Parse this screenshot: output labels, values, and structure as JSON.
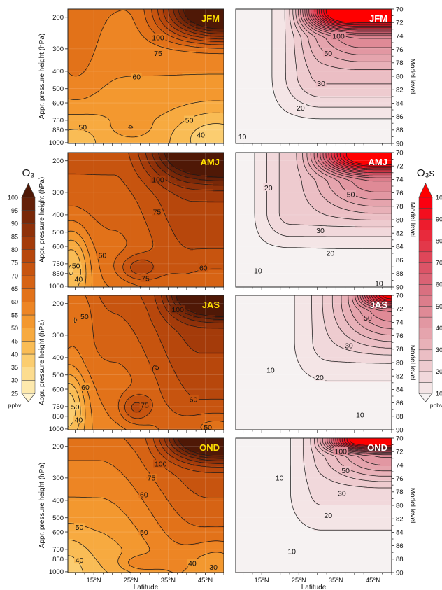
{
  "chart_data": {
    "type": "heatmap",
    "xlabel": "Latitude",
    "x_ticks": [
      "15°N",
      "25°N",
      "35°N",
      "45°N"
    ],
    "x_tick_values": [
      15,
      25,
      35,
      45
    ],
    "xlim": [
      8,
      50
    ],
    "ylabel_left": "Appr. pressure height (hPa)",
    "ylabel_right": "Model level",
    "pressure_ticks": [
      "200",
      "300",
      "400",
      "500",
      "600",
      "750",
      "850",
      "1000"
    ],
    "pressure_tick_values": [
      200,
      300,
      400,
      500,
      600,
      750,
      850,
      1000
    ],
    "pressure_lim": [
      180,
      1010
    ],
    "level_ticks": [
      "70",
      "72",
      "74",
      "76",
      "78",
      "80",
      "82",
      "84",
      "86",
      "88",
      "90"
    ],
    "level_tick_values": [
      70,
      72,
      74,
      76,
      78,
      80,
      82,
      84,
      86,
      88,
      90
    ],
    "seasons": [
      "JFM",
      "AMJ",
      "JAS",
      "OND"
    ],
    "o3": {
      "colorbar_title": "O₃",
      "unit": "ppbv",
      "levels": [
        25,
        30,
        35,
        40,
        45,
        50,
        55,
        60,
        65,
        70,
        75,
        80,
        85,
        90,
        95,
        100
      ],
      "labels": [
        "25",
        "30",
        "35",
        "40",
        "45",
        "50",
        "55",
        "60",
        "65",
        "70",
        "75",
        "80",
        "85",
        "90",
        "95",
        "100"
      ],
      "colors": [
        "#fff4cf",
        "#fde9ad",
        "#fcdc8f",
        "#fbcd70",
        "#f9bc55",
        "#f7aa40",
        "#f3982f",
        "#ed8524",
        "#e27219",
        "#d66314",
        "#c7540f",
        "#b7470c",
        "#a43b0a",
        "#8f3109",
        "#792808",
        "#652008",
        "#4f1806"
      ],
      "panels": [
        {
          "season": "JFM",
          "contour_labels": [
            {
              "text": "100",
              "lat": 32.3,
              "p": 260
            },
            {
              "text": "75",
              "lat": 32.3,
              "p": 318
            },
            {
              "text": "60",
              "lat": 26.5,
              "p": 430
            },
            {
              "text": "50",
              "lat": 12.0,
              "p": 818
            },
            {
              "text": "50",
              "lat": 40.7,
              "p": 748
            },
            {
              "text": "40",
              "lat": 43.8,
              "p": 905
            }
          ]
        },
        {
          "season": "AMJ",
          "contour_labels": [
            {
              "text": "100",
              "lat": 32.3,
              "p": 255
            },
            {
              "text": "75",
              "lat": 32.0,
              "p": 385
            },
            {
              "text": "60",
              "lat": 17.3,
              "p": 672
            },
            {
              "text": "50",
              "lat": 10.2,
              "p": 768
            },
            {
              "text": "40",
              "lat": 10.9,
              "p": 912
            },
            {
              "text": "75",
              "lat": 28.9,
              "p": 905
            },
            {
              "text": "60",
              "lat": 44.5,
              "p": 790
            }
          ]
        },
        {
          "season": "JAS",
          "contour_labels": [
            {
              "text": "50",
              "lat": 12.5,
              "p": 236
            },
            {
              "text": "100",
              "lat": 37.6,
              "p": 216
            },
            {
              "text": "75",
              "lat": 31.5,
              "p": 450
            },
            {
              "text": "60",
              "lat": 12.7,
              "p": 585
            },
            {
              "text": "50",
              "lat": 10.0,
              "p": 752
            },
            {
              "text": "40",
              "lat": 10.9,
              "p": 890
            },
            {
              "text": "75",
              "lat": 28.7,
              "p": 735
            },
            {
              "text": "60",
              "lat": 41.8,
              "p": 685
            },
            {
              "text": "50",
              "lat": 45.7,
              "p": 975
            }
          ]
        },
        {
          "season": "OND",
          "contour_labels": [
            {
              "text": "100",
              "lat": 33.0,
              "p": 250
            },
            {
              "text": "75",
              "lat": 30.5,
              "p": 300
            },
            {
              "text": "60",
              "lat": 28.5,
              "p": 372
            },
            {
              "text": "50",
              "lat": 11.1,
              "p": 565
            },
            {
              "text": "50",
              "lat": 28.5,
              "p": 600
            },
            {
              "text": "40",
              "lat": 11.1,
              "p": 860
            },
            {
              "text": "40",
              "lat": 41.5,
              "p": 895
            },
            {
              "text": "30",
              "lat": 47.2,
              "p": 940
            }
          ]
        }
      ]
    },
    "o3s": {
      "colorbar_title": "O₃s",
      "unit": "ppbv",
      "levels": [
        10,
        15,
        20,
        25,
        30,
        35,
        40,
        45,
        50,
        55,
        60,
        65,
        70,
        75,
        80,
        85,
        90,
        95,
        100
      ],
      "labels": [
        "10",
        "20",
        "30",
        "40",
        "50",
        "60",
        "70",
        "80",
        "90",
        "100"
      ],
      "colors": [
        "#f6f2f2",
        "#f4e5e6",
        "#f1d8db",
        "#eecbcf",
        "#ebbec4",
        "#e8b1b8",
        "#e5a4ad",
        "#e297a2",
        "#df8a96",
        "#dc7d8b",
        "#d97080",
        "#da6274",
        "#dc5467",
        "#df4659",
        "#e3384a",
        "#e82a3c",
        "#ed1c2d",
        "#f30e1e",
        "#fa0010",
        "#ff0000"
      ],
      "panels": [
        {
          "season": "JFM",
          "contour_labels": [
            {
              "text": "100",
              "lat": 35.7,
              "p": 255
            },
            {
              "text": "50",
              "lat": 32.9,
              "p": 318
            },
            {
              "text": "30",
              "lat": 31.0,
              "p": 468
            },
            {
              "text": "20",
              "lat": 25.5,
              "p": 640
            },
            {
              "text": "10",
              "lat": 9.8,
              "p": 925
            }
          ]
        },
        {
          "season": "AMJ",
          "contour_labels": [
            {
              "text": "20",
              "lat": 16.8,
              "p": 282
            },
            {
              "text": "50",
              "lat": 39.0,
              "p": 308
            },
            {
              "text": "30",
              "lat": 30.8,
              "p": 488
            },
            {
              "text": "20",
              "lat": 33.5,
              "p": 655
            },
            {
              "text": "10",
              "lat": 14.0,
              "p": 818
            },
            {
              "text": "10",
              "lat": 46.6,
              "p": 965
            }
          ]
        },
        {
          "season": "JAS",
          "contour_labels": [
            {
              "text": "50",
              "lat": 43.6,
              "p": 240
            },
            {
              "text": "30",
              "lat": 38.5,
              "p": 342
            },
            {
              "text": "20",
              "lat": 30.6,
              "p": 515
            },
            {
              "text": "10",
              "lat": 17.4,
              "p": 470
            },
            {
              "text": "10",
              "lat": 41.5,
              "p": 835
            }
          ]
        },
        {
          "season": "OND",
          "contour_labels": [
            {
              "text": "100",
              "lat": 36.3,
              "p": 213
            },
            {
              "text": "50",
              "lat": 37.6,
              "p": 272
            },
            {
              "text": "30",
              "lat": 36.6,
              "p": 365
            },
            {
              "text": "20",
              "lat": 32.9,
              "p": 485
            },
            {
              "text": "10",
              "lat": 19.8,
              "p": 300
            },
            {
              "text": "10",
              "lat": 23.1,
              "p": 768
            }
          ]
        }
      ]
    }
  }
}
